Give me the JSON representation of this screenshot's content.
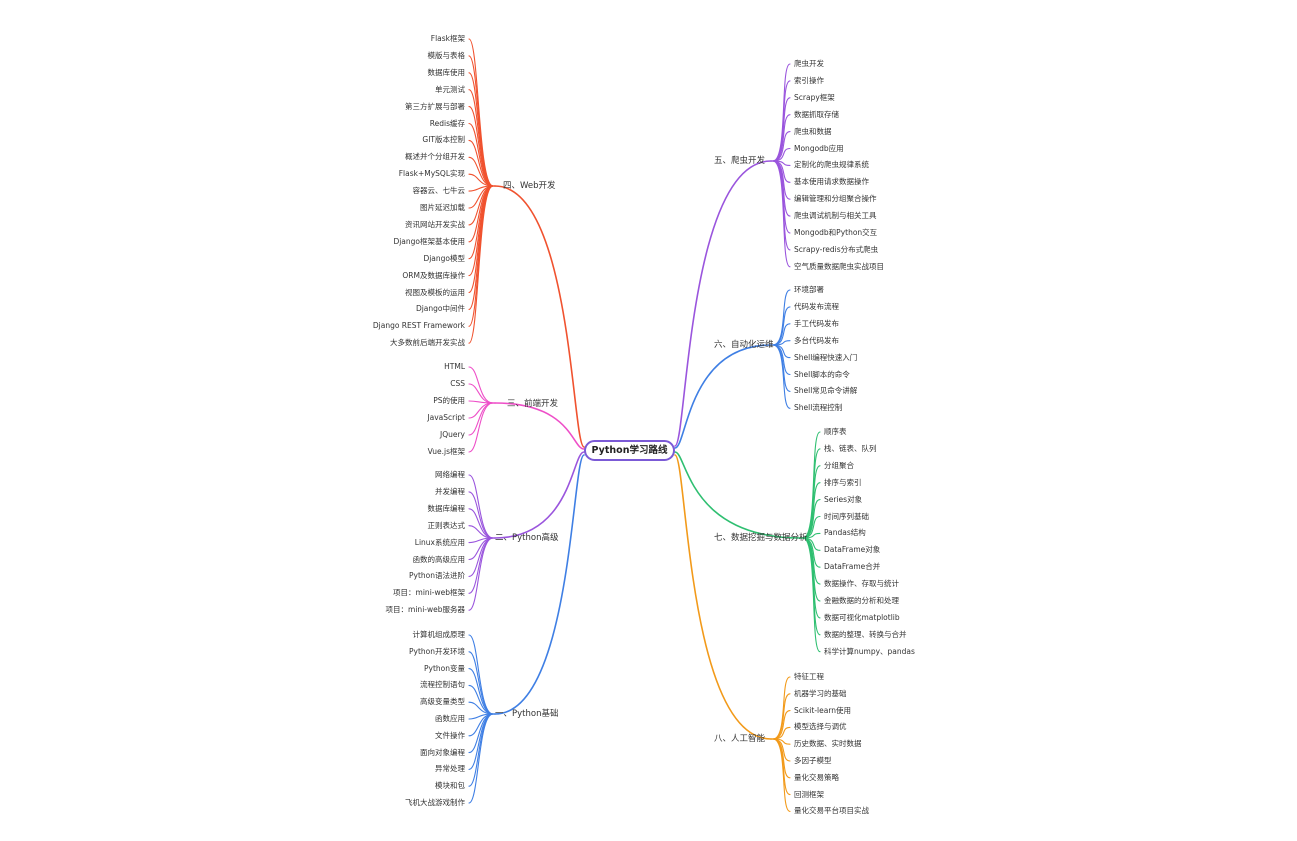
{
  "root": {
    "label": "Python学习路线"
  },
  "branches": [
    {
      "id": "b4",
      "label": "四、Web开发",
      "side": "left",
      "color": "#f0522f",
      "leaves": [
        "Flask框架",
        "模版与表格",
        "数据库使用",
        "单元测试",
        "第三方扩展与部署",
        "Redis缓存",
        "GIT版本控制",
        "概述并个分组开发",
        "Flask+MySQL实现",
        "容器云、七牛云",
        "图片延迟加载",
        "资讯网站开发实战",
        "Django框架基本使用",
        "Django模型",
        "ORM及数据库操作",
        "视图及模板的运用",
        "Django中间件",
        "Django REST Framework",
        "大多数前后端开发实战"
      ]
    },
    {
      "id": "b3",
      "label": "三、前端开发",
      "side": "left",
      "color": "#ee4fc8",
      "leaves": [
        "HTML",
        "CSS",
        "PS的使用",
        "JavaScript",
        "JQuery",
        "Vue.js框架"
      ]
    },
    {
      "id": "b2",
      "label": "二、Python高级",
      "side": "left",
      "color": "#9a55dd",
      "leaves": [
        "网络编程",
        "并发编程",
        "数据库编程",
        "正则表达式",
        "Linux系统应用",
        "函数的高级应用",
        "Python语法进阶",
        "项目：mini-web框架",
        "项目：mini-web服务器"
      ]
    },
    {
      "id": "b1",
      "label": "一、Python基础",
      "side": "left",
      "color": "#3f7fe4",
      "leaves": [
        "计算机组成原理",
        "Python开发环境",
        "Python变量",
        "流程控制语句",
        "高级变量类型",
        "函数应用",
        "文件操作",
        "面向对象编程",
        "异常处理",
        "模块和包",
        "飞机大战游戏制作"
      ]
    },
    {
      "id": "b5",
      "label": "五、爬虫开发",
      "side": "right",
      "color": "#9a55dd",
      "leaves": [
        "爬虫开发",
        "索引操作",
        "Scrapy框架",
        "数据抓取存储",
        "爬虫和数据",
        "Mongodb应用",
        "定制化的爬虫规律系统",
        "基本使用请求数据操作",
        "编辑管理和分组聚合操作",
        "爬虫调试机制与相关工具",
        "Mongodb和Python交互",
        "Scrapy-redis分布式爬虫",
        "空气质量数据爬虫实战项目"
      ]
    },
    {
      "id": "b6",
      "label": "六、自动化运维",
      "side": "right",
      "color": "#3f7fe4",
      "leaves": [
        "环境部署",
        "代码发布流程",
        "手工代码发布",
        "多台代码发布",
        "Shell编程快速入门",
        "Shell脚本的命令",
        "Shell常见命令讲解",
        "Shell流程控制"
      ]
    },
    {
      "id": "b7",
      "label": "七、数据挖掘与数据分析",
      "side": "right",
      "color": "#2fbf71",
      "leaves": [
        "顺序表",
        "栈、链表、队列",
        "分组聚合",
        "排序与索引",
        "Series对象",
        "时间序列基础",
        "Pandas结构",
        "DataFrame对象",
        "DataFrame合并",
        "数据操作、存取与统计",
        "金融数据的分析和处理",
        "数据可视化matplotlib",
        "数据的整理、转换与合并",
        "科学计算numpy、pandas"
      ]
    },
    {
      "id": "b8",
      "label": "八、人工智能",
      "side": "right",
      "color": "#f29a1a",
      "leaves": [
        "特征工程",
        "机器学习的基础",
        "Scikit-learn使用",
        "模型选择与调优",
        "历史数据、实时数据",
        "多因子模型",
        "量化交易策略",
        "回测框架",
        "量化交易平台项目实战"
      ]
    }
  ]
}
